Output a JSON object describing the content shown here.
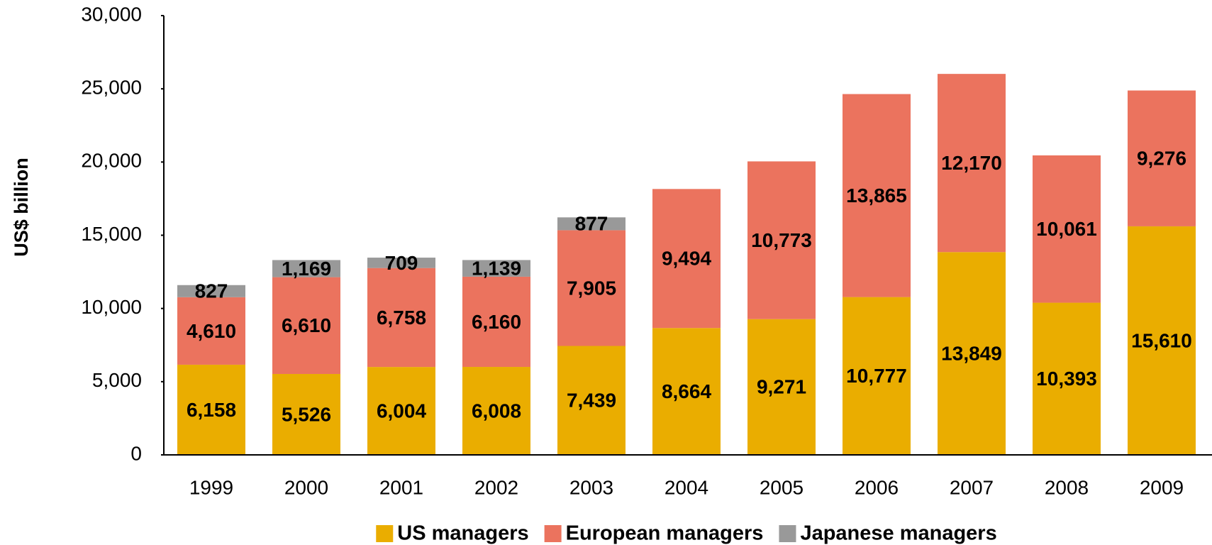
{
  "chart_data": {
    "type": "bar",
    "stacked": true,
    "y_label": "US$ billion",
    "categories": [
      "1999",
      "2000",
      "2001",
      "2002",
      "2003",
      "2004",
      "2005",
      "2006",
      "2007",
      "2008",
      "2009"
    ],
    "series": [
      {
        "name": "US managers",
        "color": "#eaad00",
        "values": [
          6158,
          5526,
          6004,
          6008,
          7439,
          8664,
          9271,
          10777,
          13849,
          10393,
          15610
        ],
        "value_labels": [
          "6,158",
          "5,526",
          "6,004",
          "6,008",
          "7,439",
          "8,664",
          "9,271",
          "10,777",
          "13,849",
          "10,393",
          "15,610"
        ]
      },
      {
        "name": "European managers",
        "color": "#eb735e",
        "values": [
          4610,
          6610,
          6758,
          6160,
          7905,
          9494,
          10773,
          13865,
          12170,
          10061,
          9276
        ],
        "value_labels": [
          "4,610",
          "6,610",
          "6,758",
          "6,160",
          "7,905",
          "9,494",
          "10,773",
          "13,865",
          "12,170",
          "10,061",
          "9,276"
        ]
      },
      {
        "name": "Japanese managers",
        "color": "#999999",
        "values": [
          827,
          1169,
          709,
          1139,
          877,
          null,
          null,
          null,
          null,
          null,
          null
        ],
        "value_labels": [
          "827",
          "1,169",
          "709",
          "1,139",
          "877",
          null,
          null,
          null,
          null,
          null,
          null
        ]
      }
    ],
    "ylim": [
      0,
      30000
    ],
    "yticks": [
      0,
      {
        "value": 5000,
        "label": "5,000"
      },
      {
        "value": 10000,
        "label": "10,000"
      },
      {
        "value": 15000,
        "label": "15,000"
      },
      {
        "value": 20000,
        "label": "20,000"
      },
      {
        "value": 25000,
        "label": "25,000"
      },
      {
        "value": 30000,
        "label": "30,000"
      }
    ],
    "grid": false,
    "legend": "bottom"
  }
}
